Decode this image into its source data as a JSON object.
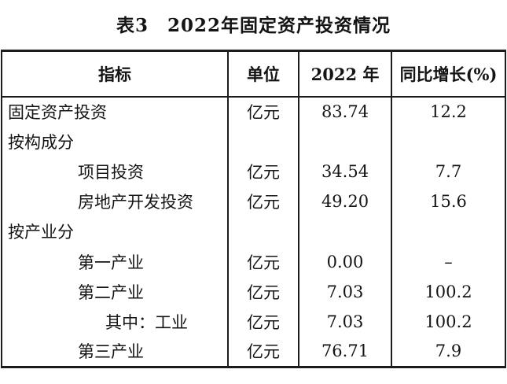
{
  "title": "表3　2022年固定资产投资情况",
  "table": {
    "headers": [
      "指标",
      "单位",
      "2022 年",
      "同比增长(%)"
    ],
    "rows": [
      {
        "label": "固定资产投资",
        "indent": 0,
        "unit": "亿元",
        "value": "83.74",
        "growth": "12.2"
      },
      {
        "label": "按构成分",
        "indent": 0,
        "unit": "",
        "value": "",
        "growth": ""
      },
      {
        "label": "项目投资",
        "indent": 1,
        "unit": "亿元",
        "value": "34.54",
        "growth": "7.7"
      },
      {
        "label": "房地产开发投资",
        "indent": 1,
        "unit": "亿元",
        "value": "49.20",
        "growth": "15.6"
      },
      {
        "label": "按产业分",
        "indent": 0,
        "unit": "",
        "value": "",
        "growth": ""
      },
      {
        "label": "第一产业",
        "indent": 1,
        "unit": "亿元",
        "value": "0.00",
        "growth": "–"
      },
      {
        "label": "第二产业",
        "indent": 1,
        "unit": "亿元",
        "value": "7.03",
        "growth": "100.2"
      },
      {
        "label": "其中：工业",
        "indent": 2,
        "unit": "亿元",
        "value": "7.03",
        "growth": "100.2"
      },
      {
        "label": "第三产业",
        "indent": 1,
        "unit": "亿元",
        "value": "76.71",
        "growth": "7.9"
      }
    ]
  }
}
